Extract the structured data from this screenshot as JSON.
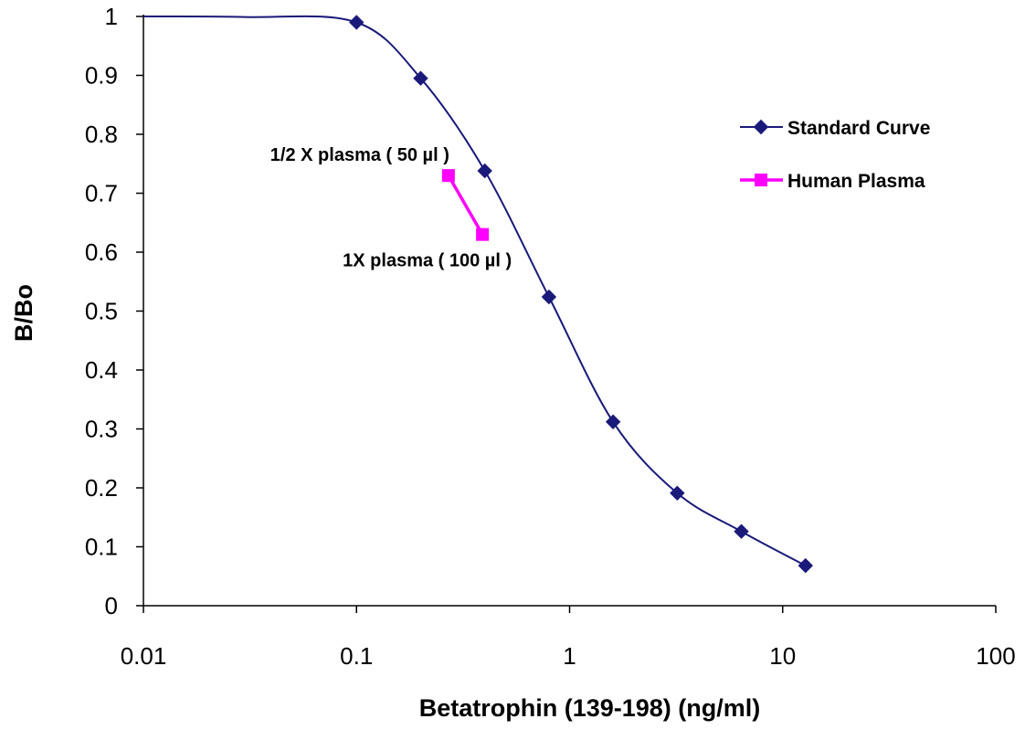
{
  "chart_data": {
    "type": "scatter",
    "xlabel": "Betatrophin (139-198) (ng/ml)",
    "ylabel": "B/Bo",
    "xscale": "log",
    "xlim": [
      0.01,
      100
    ],
    "ylim": [
      0,
      1
    ],
    "grid": false,
    "legend_position": "right",
    "x_ticks": [
      "0.01",
      "0.1",
      "1",
      "10",
      "100"
    ],
    "y_ticks": [
      "0",
      "0.1",
      "0.2",
      "0.3",
      "0.4",
      "0.5",
      "0.6",
      "0.7",
      "0.8",
      "0.9",
      "1"
    ],
    "series": [
      {
        "name": "Standard Curve",
        "color": "#1a1a7a",
        "marker": "diamond",
        "line": "smooth",
        "x": [
          0.1,
          0.2,
          0.4,
          0.8,
          1.6,
          3.2,
          6.4,
          12.8
        ],
        "y": [
          0.99,
          0.895,
          0.738,
          0.524,
          0.312,
          0.191,
          0.126,
          0.068
        ]
      },
      {
        "name": "Human Plasma",
        "color": "#ff00ff",
        "marker": "square",
        "line": "straight",
        "x": [
          0.27,
          0.39
        ],
        "y": [
          0.73,
          0.63
        ]
      }
    ],
    "annotations": [
      {
        "text": "1/2 X  plasma ( 50 µl )",
        "anchor_x": 0.27,
        "anchor_y": 0.73
      },
      {
        "text": "1X  plasma ( 100 µl )",
        "anchor_x": 0.39,
        "anchor_y": 0.63
      }
    ]
  }
}
